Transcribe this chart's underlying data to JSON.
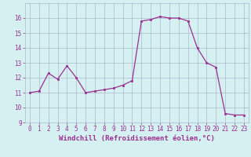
{
  "x": [
    0,
    1,
    2,
    3,
    4,
    5,
    6,
    7,
    8,
    9,
    10,
    11,
    12,
    13,
    14,
    15,
    16,
    17,
    18,
    19,
    20,
    21,
    22,
    23
  ],
  "y": [
    11.0,
    11.1,
    12.3,
    11.9,
    12.8,
    12.0,
    11.0,
    11.1,
    11.2,
    11.3,
    11.5,
    11.8,
    15.8,
    15.9,
    16.1,
    16.0,
    16.0,
    15.8,
    14.0,
    13.0,
    12.7,
    9.6,
    9.5,
    9.5
  ],
  "line_color": "#9b3090",
  "marker": "s",
  "marker_size": 1.8,
  "xlabel": "Windchill (Refroidissement éolien,°C)",
  "ylim": [
    9,
    17
  ],
  "xlim": [
    -0.5,
    23.5
  ],
  "yticks": [
    9,
    10,
    11,
    12,
    13,
    14,
    15,
    16
  ],
  "xticks": [
    0,
    1,
    2,
    3,
    4,
    5,
    6,
    7,
    8,
    9,
    10,
    11,
    12,
    13,
    14,
    15,
    16,
    17,
    18,
    19,
    20,
    21,
    22,
    23
  ],
  "bg_color": "#d4f0f0",
  "grid_color": "#b0b8d0",
  "line_width": 0.9,
  "xlabel_fontsize": 6.5,
  "tick_fontsize": 5.5,
  "tick_color": "#9b3090",
  "label_color": "#9b3090"
}
